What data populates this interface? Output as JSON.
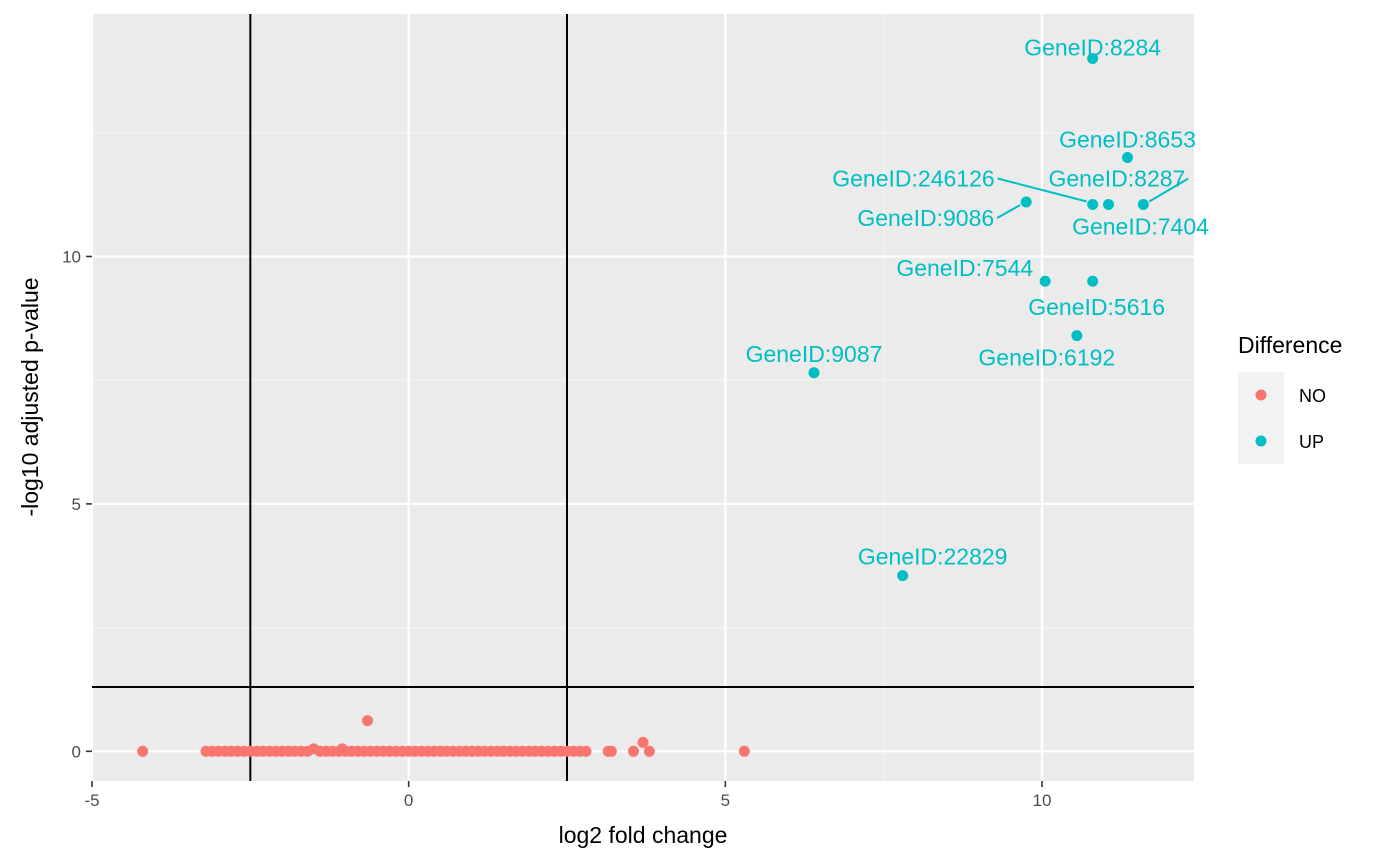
{
  "chart_data": {
    "type": "scatter",
    "title": "",
    "xlabel": "log2 fold change",
    "ylabel": "-log10 adjusted p-value",
    "xlim": [
      -5,
      12.4
    ],
    "ylim": [
      -0.6,
      14.9
    ],
    "x_ticks": [
      -5,
      0,
      5,
      10
    ],
    "y_ticks": [
      0,
      5,
      10
    ],
    "grid": true,
    "thresholds": {
      "vertical": [
        -2.5,
        2.5
      ],
      "horizontal": 1.3
    },
    "legend": {
      "title": "Difference",
      "position": "right"
    },
    "colors": {
      "NO": "#F8766D",
      "UP": "#00BFC4",
      "panel": "#EBEBEB",
      "grid_major": "#ffffff",
      "grid_minor": "#f5f5f5"
    },
    "series": [
      {
        "name": "NO",
        "points": [
          [
            -4.2,
            0
          ],
          [
            -3.2,
            0
          ],
          [
            -3.1,
            0
          ],
          [
            -3.0,
            0
          ],
          [
            -2.9,
            0
          ],
          [
            -2.8,
            0
          ],
          [
            -2.7,
            0
          ],
          [
            -2.6,
            0
          ],
          [
            -2.5,
            0
          ],
          [
            -2.4,
            0
          ],
          [
            -2.3,
            0
          ],
          [
            -2.2,
            0
          ],
          [
            -2.1,
            0
          ],
          [
            -2.0,
            0
          ],
          [
            -1.9,
            0
          ],
          [
            -1.8,
            0
          ],
          [
            -1.7,
            0
          ],
          [
            -1.6,
            0
          ],
          [
            -1.5,
            0.05
          ],
          [
            -1.4,
            0
          ],
          [
            -1.3,
            0
          ],
          [
            -1.2,
            0
          ],
          [
            -1.1,
            0
          ],
          [
            -1.05,
            0.05
          ],
          [
            -1.0,
            0
          ],
          [
            -0.9,
            0
          ],
          [
            -0.8,
            0
          ],
          [
            -0.7,
            0
          ],
          [
            -0.65,
            0.62
          ],
          [
            -0.6,
            0
          ],
          [
            -0.5,
            0
          ],
          [
            -0.4,
            0
          ],
          [
            -0.3,
            0
          ],
          [
            -0.2,
            0
          ],
          [
            -0.1,
            0
          ],
          [
            0.0,
            0
          ],
          [
            0.1,
            0
          ],
          [
            0.2,
            0
          ],
          [
            0.3,
            0
          ],
          [
            0.4,
            0
          ],
          [
            0.5,
            0
          ],
          [
            0.6,
            0
          ],
          [
            0.7,
            0
          ],
          [
            0.8,
            0
          ],
          [
            0.9,
            0
          ],
          [
            1.0,
            0
          ],
          [
            1.1,
            0
          ],
          [
            1.2,
            0
          ],
          [
            1.3,
            0
          ],
          [
            1.4,
            0
          ],
          [
            1.5,
            0
          ],
          [
            1.6,
            0
          ],
          [
            1.7,
            0
          ],
          [
            1.8,
            0
          ],
          [
            1.9,
            0
          ],
          [
            2.0,
            0
          ],
          [
            2.1,
            0
          ],
          [
            2.2,
            0
          ],
          [
            2.3,
            0
          ],
          [
            2.4,
            0
          ],
          [
            2.5,
            0
          ],
          [
            2.6,
            0
          ],
          [
            2.7,
            0
          ],
          [
            2.8,
            0
          ],
          [
            3.15,
            0
          ],
          [
            3.2,
            0
          ],
          [
            3.55,
            0
          ],
          [
            3.7,
            0.18
          ],
          [
            3.8,
            0
          ],
          [
            5.3,
            0
          ]
        ]
      },
      {
        "name": "UP",
        "points": [
          [
            10.8,
            14.0,
            "GeneID:8284"
          ],
          [
            11.35,
            12.0,
            "GeneID:8653"
          ],
          [
            10.8,
            11.05,
            "GeneID:246126"
          ],
          [
            11.6,
            11.05,
            "GeneID:8287"
          ],
          [
            9.75,
            11.1,
            "GeneID:9086"
          ],
          [
            11.05,
            11.05,
            "GeneID:7404"
          ],
          [
            10.05,
            9.5,
            "GeneID:7544"
          ],
          [
            10.8,
            9.5,
            "GeneID:5616"
          ],
          [
            10.55,
            8.4,
            "GeneID:6192"
          ],
          [
            6.4,
            7.65,
            "GeneID:9087"
          ],
          [
            7.8,
            3.55,
            "GeneID:22829"
          ]
        ]
      }
    ]
  }
}
